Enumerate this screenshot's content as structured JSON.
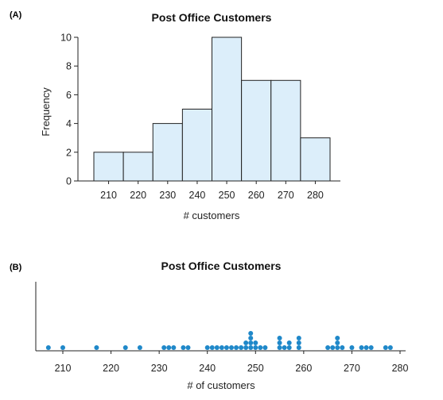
{
  "panel_a_label": "(A)",
  "panel_b_label": "(B)",
  "colors": {
    "bar_fill": "#dceefa",
    "bar_stroke": "#222222",
    "dot": "#1f88c9"
  },
  "chart_data": [
    {
      "type": "bar",
      "subtype": "histogram",
      "title": "Post Office Customers",
      "xlabel": "# customers",
      "ylabel": "Frequency",
      "bin_edges": [
        205,
        215,
        225,
        235,
        245,
        255,
        265,
        275,
        285
      ],
      "values": [
        2,
        2,
        4,
        5,
        10,
        7,
        7,
        3
      ],
      "xticks": [
        210,
        220,
        230,
        240,
        250,
        260,
        270,
        280
      ],
      "yticks": [
        0,
        2,
        4,
        6,
        8,
        10
      ],
      "ylim": [
        0,
        10
      ],
      "grid": false
    },
    {
      "type": "scatter",
      "subtype": "dotplot",
      "title": "Post Office Customers",
      "xlabel": "# of customers",
      "xticks": [
        210,
        220,
        230,
        240,
        250,
        260,
        270,
        280
      ],
      "xlim": [
        203,
        282
      ],
      "points": [
        {
          "x": 207,
          "count": 1
        },
        {
          "x": 210,
          "count": 1
        },
        {
          "x": 217,
          "count": 1
        },
        {
          "x": 223,
          "count": 1
        },
        {
          "x": 226,
          "count": 1
        },
        {
          "x": 231,
          "count": 1
        },
        {
          "x": 232,
          "count": 1
        },
        {
          "x": 233,
          "count": 1
        },
        {
          "x": 235,
          "count": 1
        },
        {
          "x": 236,
          "count": 1
        },
        {
          "x": 240,
          "count": 1
        },
        {
          "x": 241,
          "count": 1
        },
        {
          "x": 242,
          "count": 1
        },
        {
          "x": 243,
          "count": 1
        },
        {
          "x": 244,
          "count": 1
        },
        {
          "x": 245,
          "count": 1
        },
        {
          "x": 246,
          "count": 1
        },
        {
          "x": 247,
          "count": 1
        },
        {
          "x": 248,
          "count": 2
        },
        {
          "x": 249,
          "count": 4
        },
        {
          "x": 250,
          "count": 2
        },
        {
          "x": 251,
          "count": 1
        },
        {
          "x": 252,
          "count": 1
        },
        {
          "x": 255,
          "count": 3
        },
        {
          "x": 256,
          "count": 1
        },
        {
          "x": 257,
          "count": 2
        },
        {
          "x": 259,
          "count": 3
        },
        {
          "x": 265,
          "count": 1
        },
        {
          "x": 266,
          "count": 1
        },
        {
          "x": 267,
          "count": 3
        },
        {
          "x": 268,
          "count": 1
        },
        {
          "x": 270,
          "count": 1
        },
        {
          "x": 272,
          "count": 1
        },
        {
          "x": 273,
          "count": 1
        },
        {
          "x": 274,
          "count": 1
        },
        {
          "x": 277,
          "count": 1
        },
        {
          "x": 278,
          "count": 1
        }
      ],
      "grid": false
    }
  ]
}
